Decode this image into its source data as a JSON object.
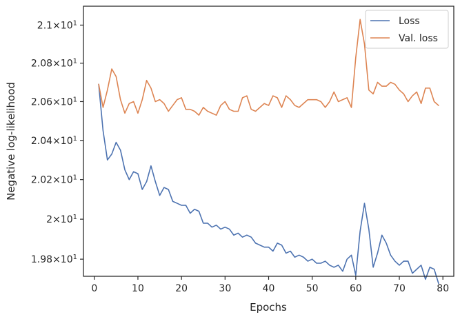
{
  "chart_data": {
    "type": "line",
    "xlabel": "Epochs",
    "ylabel": "Negative log-likelihood",
    "xlim": [
      -2.5,
      82.5
    ],
    "ylim": [
      19.715,
      21.1
    ],
    "yscale": "log",
    "grid": false,
    "legend_position": "top-right",
    "x_ticks": [
      {
        "value": 0,
        "label": "0"
      },
      {
        "value": 10,
        "label": "10"
      },
      {
        "value": 20,
        "label": "20"
      },
      {
        "value": 30,
        "label": "30"
      },
      {
        "value": 40,
        "label": "40"
      },
      {
        "value": 50,
        "label": "50"
      },
      {
        "value": 60,
        "label": "60"
      },
      {
        "value": 70,
        "label": "70"
      },
      {
        "value": 80,
        "label": "80"
      }
    ],
    "y_ticks": [
      {
        "value": 19.8,
        "mantissa": "1.98",
        "base": "10",
        "exp": "1"
      },
      {
        "value": 20.0,
        "mantissa": "2",
        "base": "10",
        "exp": "1"
      },
      {
        "value": 20.2,
        "mantissa": "2.02",
        "base": "10",
        "exp": "1"
      },
      {
        "value": 20.4,
        "mantissa": "2.04",
        "base": "10",
        "exp": "1"
      },
      {
        "value": 20.6,
        "mantissa": "2.06",
        "base": "10",
        "exp": "1"
      },
      {
        "value": 20.8,
        "mantissa": "2.08",
        "base": "10",
        "exp": "1"
      },
      {
        "value": 21.0,
        "mantissa": "2.1",
        "base": "10",
        "exp": "1"
      }
    ],
    "x": [
      1,
      2,
      3,
      4,
      5,
      6,
      7,
      8,
      9,
      10,
      11,
      12,
      13,
      14,
      15,
      16,
      17,
      18,
      19,
      20,
      21,
      22,
      23,
      24,
      25,
      26,
      27,
      28,
      29,
      30,
      31,
      32,
      33,
      34,
      35,
      36,
      37,
      38,
      39,
      40,
      41,
      42,
      43,
      44,
      45,
      46,
      47,
      48,
      49,
      50,
      51,
      52,
      53,
      54,
      55,
      56,
      57,
      58,
      59,
      60,
      61,
      62,
      63,
      64,
      65,
      66,
      67,
      68,
      69,
      70,
      71,
      72,
      73,
      74,
      75,
      76,
      77,
      78,
      79
    ],
    "series": [
      {
        "name": "Loss",
        "color": "#4c72b0",
        "values": [
          20.69,
          20.45,
          20.3,
          20.33,
          20.39,
          20.35,
          20.25,
          20.2,
          20.24,
          20.23,
          20.15,
          20.19,
          20.27,
          20.19,
          20.12,
          20.16,
          20.15,
          20.09,
          20.08,
          20.07,
          20.07,
          20.03,
          20.05,
          20.04,
          19.98,
          19.98,
          19.96,
          19.97,
          19.95,
          19.96,
          19.95,
          19.92,
          19.93,
          19.91,
          19.92,
          19.91,
          19.88,
          19.87,
          19.86,
          19.86,
          19.84,
          19.88,
          19.87,
          19.83,
          19.84,
          19.81,
          19.82,
          19.81,
          19.79,
          19.8,
          19.78,
          19.78,
          19.79,
          19.77,
          19.76,
          19.77,
          19.74,
          19.8,
          19.82,
          19.72,
          19.94,
          20.08,
          19.95,
          19.76,
          19.83,
          19.92,
          19.88,
          19.82,
          19.79,
          19.77,
          19.79,
          19.79,
          19.73,
          19.75,
          19.77,
          19.7,
          19.76,
          19.75,
          19.68
        ]
      },
      {
        "name": "Val. loss",
        "color": "#dd8452",
        "values": [
          20.69,
          20.57,
          20.66,
          20.77,
          20.73,
          20.61,
          20.54,
          20.59,
          20.6,
          20.54,
          20.61,
          20.71,
          20.67,
          20.6,
          20.61,
          20.59,
          20.55,
          20.58,
          20.61,
          20.62,
          20.56,
          20.56,
          20.55,
          20.53,
          20.57,
          20.55,
          20.54,
          20.53,
          20.58,
          20.6,
          20.56,
          20.55,
          20.55,
          20.62,
          20.63,
          20.56,
          20.55,
          20.57,
          20.59,
          20.58,
          20.63,
          20.62,
          20.57,
          20.63,
          20.61,
          20.58,
          20.57,
          20.59,
          20.61,
          20.61,
          20.61,
          20.6,
          20.57,
          20.6,
          20.65,
          20.6,
          20.61,
          20.62,
          20.57,
          20.83,
          21.03,
          20.9,
          20.66,
          20.64,
          20.7,
          20.68,
          20.68,
          20.7,
          20.69,
          20.66,
          20.64,
          20.6,
          20.63,
          20.65,
          20.59,
          20.67,
          20.67,
          20.6,
          20.58
        ]
      }
    ]
  }
}
